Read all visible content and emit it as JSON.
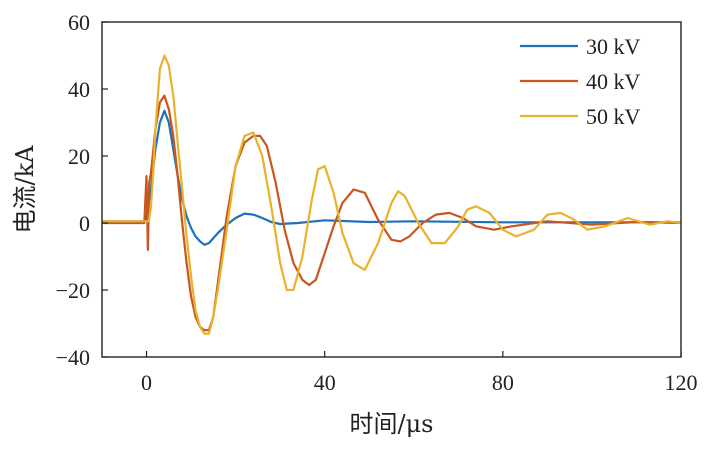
{
  "chart_data": {
    "type": "line",
    "xlabel": "时间/μs",
    "ylabel": "电流/kA",
    "xlim": [
      -10,
      120
    ],
    "ylim": [
      -40,
      60
    ],
    "xticks": [
      0,
      40,
      80,
      120
    ],
    "yticks": [
      -40,
      -20,
      0,
      20,
      40,
      60
    ],
    "grid": false,
    "legend_position": "top-right",
    "series": [
      {
        "name": "30 kV",
        "color": "#1f6fba",
        "x": [
          -10,
          -0.5,
          0,
          1,
          2,
          3,
          4,
          5,
          6,
          7,
          8,
          9,
          10,
          11,
          12,
          13,
          14,
          16,
          18,
          20,
          22,
          24,
          26,
          28,
          30,
          34,
          40,
          50,
          60,
          80,
          100,
          120
        ],
        "y": [
          0.5,
          0.5,
          2,
          10,
          22,
          30,
          33.5,
          30,
          22,
          14,
          7,
          2,
          -1.5,
          -4,
          -5.5,
          -6.5,
          -6,
          -3,
          -0.5,
          1.5,
          2.8,
          2.5,
          1.5,
          0.3,
          -0.3,
          0,
          0.8,
          0.3,
          0.5,
          0.2,
          0.2,
          0.2
        ]
      },
      {
        "name": "40 kV",
        "color": "#c9561f",
        "x": [
          -10,
          -0.5,
          0,
          0.3,
          0.6,
          1,
          2,
          3,
          4,
          5,
          6,
          7,
          8,
          9,
          10,
          11,
          12,
          13,
          14,
          15,
          16,
          18,
          20,
          22,
          24,
          25.5,
          27,
          29,
          31,
          33,
          35,
          36.5,
          38,
          40,
          42,
          44,
          46.5,
          49,
          52,
          55,
          57,
          59,
          62,
          65,
          68,
          71,
          74,
          78,
          82,
          90,
          100,
          110,
          120
        ],
        "y": [
          0,
          0,
          14,
          -8,
          12,
          15,
          28,
          36,
          38,
          34,
          26,
          14,
          0,
          -12,
          -22,
          -28,
          -31,
          -32,
          -32,
          -28,
          -18,
          2,
          17,
          24,
          26,
          26,
          23,
          12,
          -2,
          -12,
          -17,
          -18.5,
          -17,
          -9,
          -1,
          6,
          10,
          9,
          1,
          -5,
          -5.5,
          -4,
          0,
          2.5,
          3,
          1.5,
          -1,
          -2,
          -1,
          0.5,
          -0.5,
          0.3,
          0
        ]
      },
      {
        "name": "50 kV",
        "color": "#e8b22c",
        "x": [
          -10,
          0.5,
          1,
          1.5,
          2,
          3,
          4,
          5,
          6,
          7,
          8,
          9,
          10,
          11,
          12,
          13,
          14,
          15,
          16,
          18,
          20,
          22,
          24,
          26,
          28,
          30,
          31.5,
          33,
          35,
          37,
          38.5,
          40,
          42,
          44,
          46.5,
          49,
          52,
          55,
          56.5,
          58,
          61,
          64,
          67,
          70,
          72,
          74,
          77,
          80,
          83,
          87,
          90,
          93,
          96,
          99,
          103,
          108,
          113,
          117,
          120
        ],
        "y": [
          0.5,
          0.5,
          5,
          15,
          28,
          46,
          50,
          47,
          38,
          24,
          10,
          -4,
          -16,
          -26,
          -31,
          -33,
          -33,
          -28,
          -20,
          -2,
          17,
          26,
          27,
          20,
          5,
          -12,
          -20,
          -20,
          -10,
          6,
          16,
          17,
          9,
          -3,
          -12,
          -14,
          -6,
          6,
          9.5,
          8,
          0,
          -6,
          -6,
          -1,
          4,
          5,
          3,
          -2,
          -4,
          -2,
          2.5,
          3,
          1,
          -2,
          -1,
          1.5,
          -0.5,
          0.5,
          0
        ]
      }
    ]
  }
}
